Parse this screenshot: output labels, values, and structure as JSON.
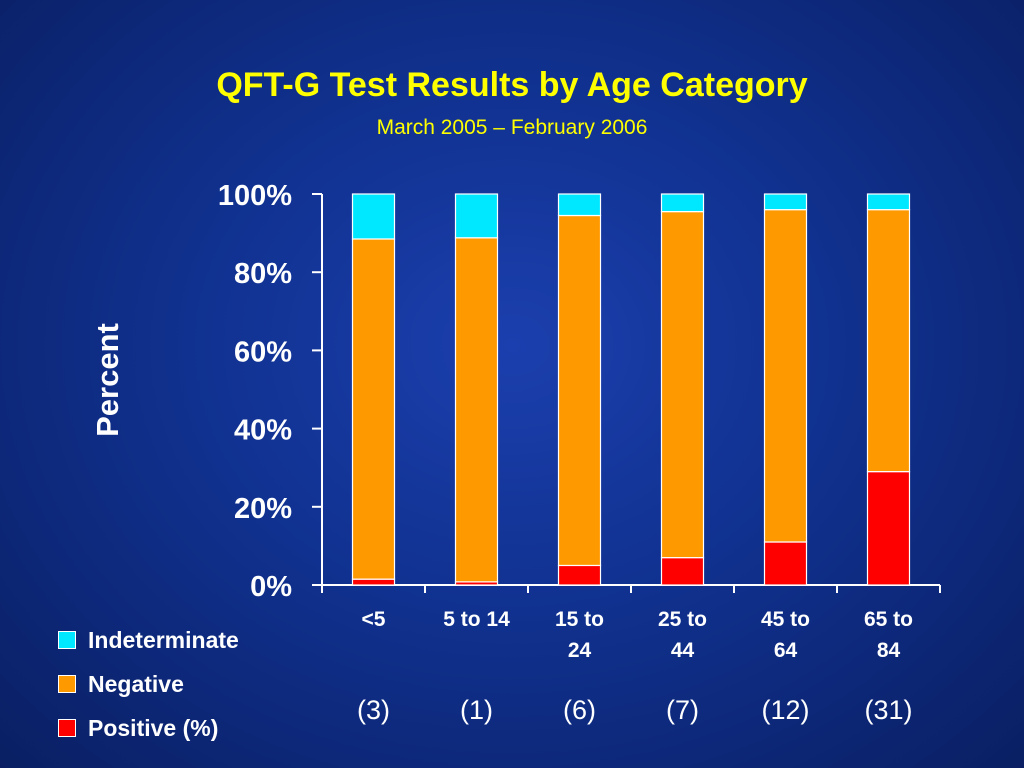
{
  "slide": {
    "title": "QFT-G Test Results by Age Category",
    "subtitle": "March 2005 – February 2006"
  },
  "colors": {
    "indeterminate": "#00e8ff",
    "negative": "#ff9900",
    "positive": "#ff0000",
    "axis": "#ffffff",
    "title": "#ffff00"
  },
  "chart_data": {
    "type": "bar",
    "stacked": true,
    "title": "QFT-G Test Results by Age Category",
    "subtitle": "March 2005 – February 2006",
    "ylabel": "Percent",
    "xlabel": "",
    "ylim": [
      0,
      100
    ],
    "yticks": [
      "0%",
      "20%",
      "40%",
      "60%",
      "80%",
      "100%"
    ],
    "categories": [
      "<5",
      "5 to 14",
      "15 to 24",
      "25 to 44",
      "45 to 64",
      "65 to 84"
    ],
    "category_lines": [
      [
        "<5"
      ],
      [
        "5 to 14"
      ],
      [
        "15 to",
        "24"
      ],
      [
        "25 to",
        "44"
      ],
      [
        "45 to",
        "64"
      ],
      [
        "65 to",
        "84"
      ]
    ],
    "counts": [
      "(3)",
      "(1)",
      "(6)",
      "(7)",
      "(12)",
      "(31)"
    ],
    "series": [
      {
        "name": "Positive (%)",
        "color": "#ff0000",
        "values": [
          1.5,
          0.8,
          5,
          7,
          11,
          29
        ]
      },
      {
        "name": "Negative",
        "color": "#ff9900",
        "values": [
          87,
          88,
          89.5,
          88.5,
          85,
          67
        ]
      },
      {
        "name": "Indeterminate",
        "color": "#00e8ff",
        "values": [
          11.5,
          11.2,
          5.5,
          4.5,
          4,
          4
        ]
      }
    ],
    "legend": [
      "Indeterminate",
      "Negative",
      "Positive (%)"
    ],
    "legend_position": "bottom-left",
    "grid": false
  }
}
